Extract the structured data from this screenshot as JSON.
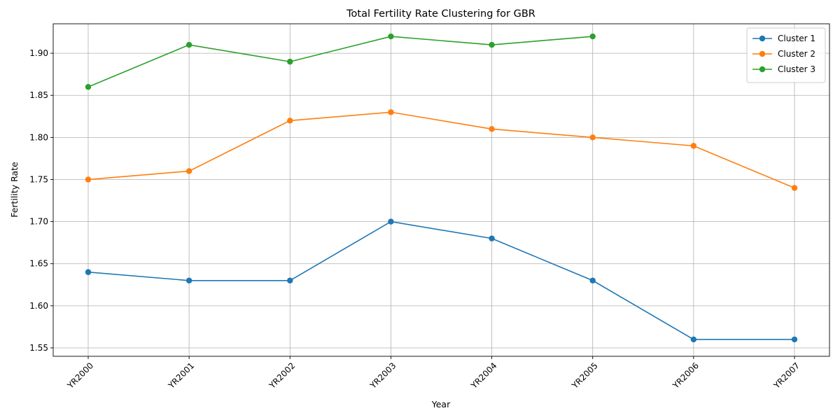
{
  "chart_data": {
    "type": "line",
    "title": "Total Fertility Rate Clustering for GBR",
    "xlabel": "Year",
    "ylabel": "Fertility Rate",
    "categories": [
      "YR2000",
      "YR2001",
      "YR2002",
      "YR2003",
      "YR2004",
      "YR2005",
      "YR2006",
      "YR2007"
    ],
    "yticks": [
      1.55,
      1.6,
      1.65,
      1.7,
      1.75,
      1.8,
      1.85,
      1.9
    ],
    "ylim": [
      1.54,
      1.935
    ],
    "grid": true,
    "legend_position": "top-right",
    "series": [
      {
        "name": "Cluster 1",
        "color": "#1f77b4",
        "values": [
          1.64,
          1.63,
          1.63,
          1.7,
          1.68,
          1.63,
          1.56,
          1.56
        ]
      },
      {
        "name": "Cluster 2",
        "color": "#ff7f0e",
        "values": [
          1.75,
          1.76,
          1.82,
          1.83,
          1.81,
          1.8,
          1.79,
          1.74
        ]
      },
      {
        "name": "Cluster 3",
        "color": "#2ca02c",
        "values": [
          1.86,
          1.91,
          1.89,
          1.92,
          1.91,
          1.92,
          null,
          null
        ]
      }
    ]
  }
}
